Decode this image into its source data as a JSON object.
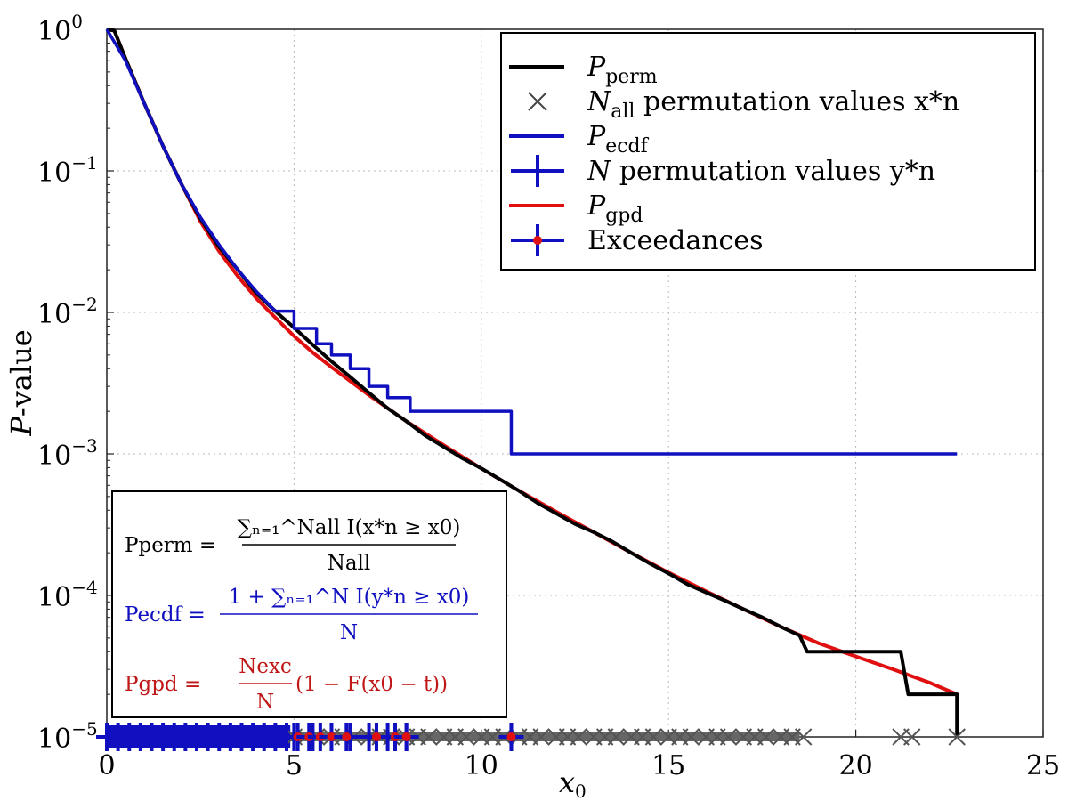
{
  "chart_data": {
    "type": "line",
    "xlabel": "x0",
    "ylabel": "P-value",
    "xlim": [
      0,
      25
    ],
    "ylim": [
      1e-05,
      1
    ],
    "y_scale": "log",
    "grid": true,
    "legend_position": "top-right",
    "x_ticks": [
      "0",
      "5",
      "10",
      "15",
      "20",
      "25"
    ],
    "y_ticks": [
      {
        "base": "10",
        "exp": "0"
      },
      {
        "base": "10",
        "exp": "−1"
      },
      {
        "base": "10",
        "exp": "−2"
      },
      {
        "base": "10",
        "exp": "−3"
      },
      {
        "base": "10",
        "exp": "−4"
      },
      {
        "base": "10",
        "exp": "−5"
      }
    ],
    "legend": [
      {
        "main": "P",
        "sub": "perm",
        "rest": "",
        "color": "#000000",
        "marker": "line"
      },
      {
        "main": "N",
        "sub": "all",
        "rest": " permutation values x*n",
        "color": "#444444",
        "marker": "x"
      },
      {
        "main": "P",
        "sub": "ecdf",
        "rest": "",
        "color": "#1010c0",
        "marker": "line"
      },
      {
        "main": "N",
        "sub": "",
        "rest": " permutation values y*n",
        "color": "#1010c0",
        "marker": "plus"
      },
      {
        "main": "P",
        "sub": "gpd",
        "rest": "",
        "color": "#e01010",
        "marker": "line"
      },
      {
        "main": "",
        "sub": "",
        "rest": "Exceedances",
        "color": "#e01010",
        "marker": "plus-dot"
      }
    ],
    "formulas": [
      {
        "lhs": "Pperm =",
        "num": "∑ₙ₌₁^Nall I(x*n ≥ x0)",
        "den": "Nall",
        "color": "#000000"
      },
      {
        "lhs": "Pecdf =",
        "num": "1 + ∑ₙ₌₁^N I(y*n ≥ x0)",
        "den": "N",
        "color": "#1010c0"
      },
      {
        "lhs": "Pgpd =",
        "num": "Nexc",
        "den": "N",
        "tail": "(1 − F(x0 − t))",
        "color": "#c01818"
      }
    ],
    "series": [
      {
        "name": "Pperm",
        "color": "#000000",
        "x": [
          0,
          0.2,
          0.5,
          1,
          1.5,
          2,
          2.5,
          3,
          3.5,
          4,
          4.5,
          5,
          5.5,
          6,
          6.5,
          7,
          7.5,
          8,
          8.5,
          9,
          9.5,
          10,
          10.5,
          11,
          11.5,
          12,
          12.5,
          13,
          13.5,
          14,
          14.5,
          15,
          15.5,
          16,
          16.5,
          17,
          17.5,
          18,
          18.5,
          18.7,
          19,
          20,
          21.2,
          21.4,
          22.2,
          22.7,
          22.7
        ],
        "y": [
          1,
          0.98,
          0.62,
          0.3,
          0.15,
          0.08,
          0.046,
          0.029,
          0.02,
          0.0136,
          0.0102,
          0.0078,
          0.0059,
          0.0045,
          0.0035,
          0.0027,
          0.0021,
          0.0017,
          0.00135,
          0.00112,
          0.00093,
          0.00079,
          0.00066,
          0.00055,
          0.00045,
          0.00038,
          0.00032,
          0.00028,
          0.00024,
          0.0002,
          0.000168,
          0.000143,
          0.00012,
          0.000105,
          9.2e-05,
          8e-05,
          7e-05,
          6e-05,
          5.2e-05,
          4e-05,
          4e-05,
          4e-05,
          4e-05,
          2e-05,
          2e-05,
          2e-05,
          1e-05
        ]
      },
      {
        "name": "Pecdf",
        "color": "#1010c0",
        "x": [
          0,
          0.5,
          1,
          1.5,
          2,
          2.5,
          3,
          3.5,
          4,
          4.5,
          5,
          5.6,
          6,
          6.5,
          7,
          7.5,
          8.1,
          10.8,
          10.8,
          22.7
        ],
        "y": [
          1,
          0.6,
          0.3,
          0.15,
          0.08,
          0.047,
          0.03,
          0.02,
          0.014,
          0.0102,
          0.0077,
          0.006,
          0.005,
          0.004,
          0.003,
          0.0025,
          0.002,
          0.002,
          0.001,
          0.001
        ]
      },
      {
        "name": "Pgpd",
        "color": "#e01010",
        "x": [
          0,
          0.2,
          0.5,
          1,
          1.5,
          2,
          2.5,
          3,
          3.5,
          4,
          4.5,
          5,
          5.5,
          6,
          7,
          8,
          9,
          10,
          11,
          12,
          13,
          14,
          15,
          16,
          17,
          18,
          19,
          20,
          21,
          22,
          22.7
        ],
        "y": [
          1,
          0.98,
          0.62,
          0.3,
          0.15,
          0.08,
          0.044,
          0.027,
          0.018,
          0.0125,
          0.0092,
          0.0068,
          0.0052,
          0.0041,
          0.0026,
          0.0017,
          0.00115,
          0.00079,
          0.00055,
          0.00039,
          0.00028,
          0.0002,
          0.000145,
          0.000107,
          8e-05,
          6e-05,
          4.6e-05,
          3.7e-05,
          3e-05,
          2.4e-05,
          2e-05
        ]
      }
    ],
    "markers": {
      "x_marks": [
        5,
        5.3,
        5.6,
        6,
        6.3,
        6.6,
        7,
        7.3,
        7.6,
        8,
        8.3,
        8.6,
        9,
        9.3,
        9.6,
        10,
        10.3,
        10.6,
        11,
        11.3,
        11.6,
        12,
        12.3,
        12.6,
        13,
        13.3,
        13.6,
        14,
        14.3,
        14.6,
        15,
        15.3,
        15.6,
        16,
        16.3,
        16.6,
        17,
        17.3,
        17.6,
        18,
        18.3,
        18.6,
        21.2,
        21.5,
        22.7
      ],
      "blue_plus": [
        0,
        0.3,
        0.6,
        0.9,
        1.2,
        1.5,
        1.8,
        2.1,
        2.4,
        2.7,
        3,
        3.3,
        3.6,
        3.9,
        4.2,
        4.5,
        4.8,
        5,
        5.5,
        6,
        6.5,
        7,
        7.5,
        8,
        10.8
      ],
      "exceedances": [
        5.1,
        5.4,
        5.7,
        6,
        6.4,
        7.2,
        7.7,
        8,
        10.8
      ]
    }
  }
}
